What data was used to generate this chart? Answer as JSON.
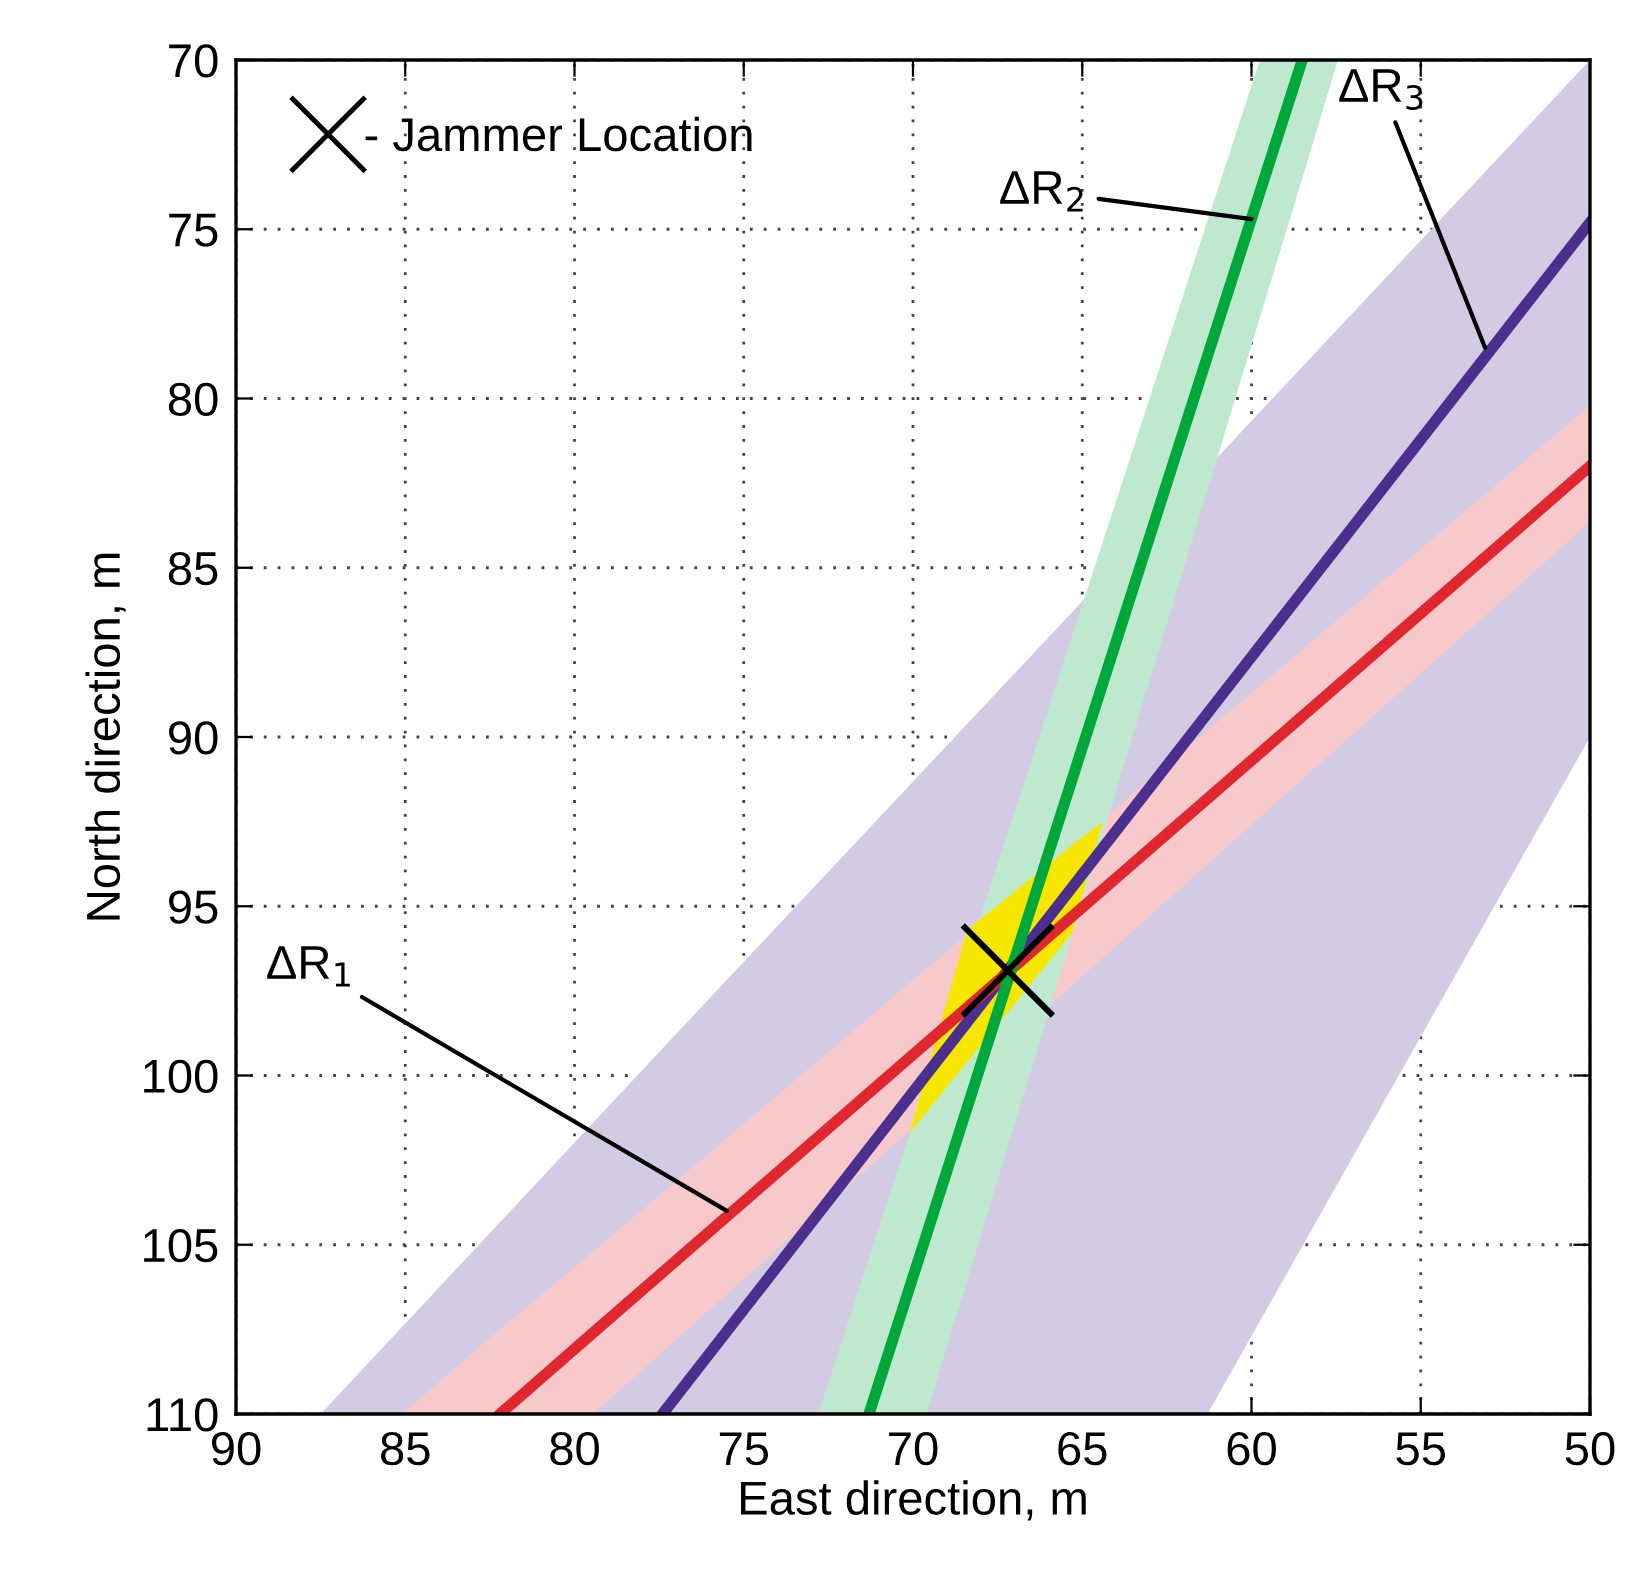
{
  "chart_data": {
    "type": "line",
    "xlabel": "East direction, m",
    "ylabel": "North direction, m",
    "xlim": [
      90,
      50
    ],
    "ylim": [
      110,
      70
    ],
    "xticks": [
      90,
      85,
      80,
      75,
      70,
      65,
      60,
      55,
      50
    ],
    "yticks": [
      70,
      75,
      80,
      85,
      90,
      95,
      100,
      105,
      110
    ],
    "grid": true,
    "legend": "top left",
    "line_style": "solid",
    "series": [
      {
        "color": "#4a2f8f",
        "x": [
          87.5,
          77.4,
          61.3,
          50
        ],
        "values": [
          null,
          110,
          89.3,
          74.8
        ],
        "lower": [
          110,
          99.2,
          82.05,
          70
        ],
        "upper": [
          110,
          110,
          110,
          90
        ]
      },
      {
        "color": "#e0262f",
        "x": [
          85.1,
          82.2,
          79.45,
          50
        ],
        "values": [
          null,
          110,
          107.6,
          82.0
        ],
        "lower": [
          110,
          107.5,
          105.2,
          80.2
        ],
        "upper": [
          110,
          110,
          110,
          83.65
        ]
      },
      {
        "color": "#00a83b",
        "x": [
          72.8,
          71.3,
          69.6,
          59.75,
          58.5,
          57.45
        ],
        "values": [
          null,
          110,
          104.7,
          73.9,
          70,
          null
        ],
        "lower": [
          110,
          105.4,
          100.2,
          70,
          70,
          70
        ],
        "upper": [
          110,
          110,
          110,
          77.6,
          73.5,
          70
        ]
      },
      {
        "type": "area",
        "color": "#f7e600",
        "x": [
          70.1,
          68.4,
          65.3,
          64.4
        ],
        "values": [
          null,
          null,
          null,
          null
        ],
        "lower": [
          101.7,
          95.7,
          93.2,
          92.5
        ],
        "upper": [
          101.7,
          99.6,
          95.8,
          92.5
        ]
      },
      {
        "type": "scatter",
        "name": "- Jammer Location",
        "color": "#000000",
        "marker": "cross",
        "x": [
          67.2
        ],
        "values": [
          96.9
        ]
      }
    ],
    "annotations": [
      {
        "text": "ΔR$_{1}$",
        "x": 75.5,
        "y": 104.0
      },
      {
        "text": "ΔR$_{2}$",
        "x": 60.0,
        "y": 74.7
      },
      {
        "text": "ΔR$_{3}$",
        "x": 53.1,
        "y": 78.5
      }
    ]
  }
}
